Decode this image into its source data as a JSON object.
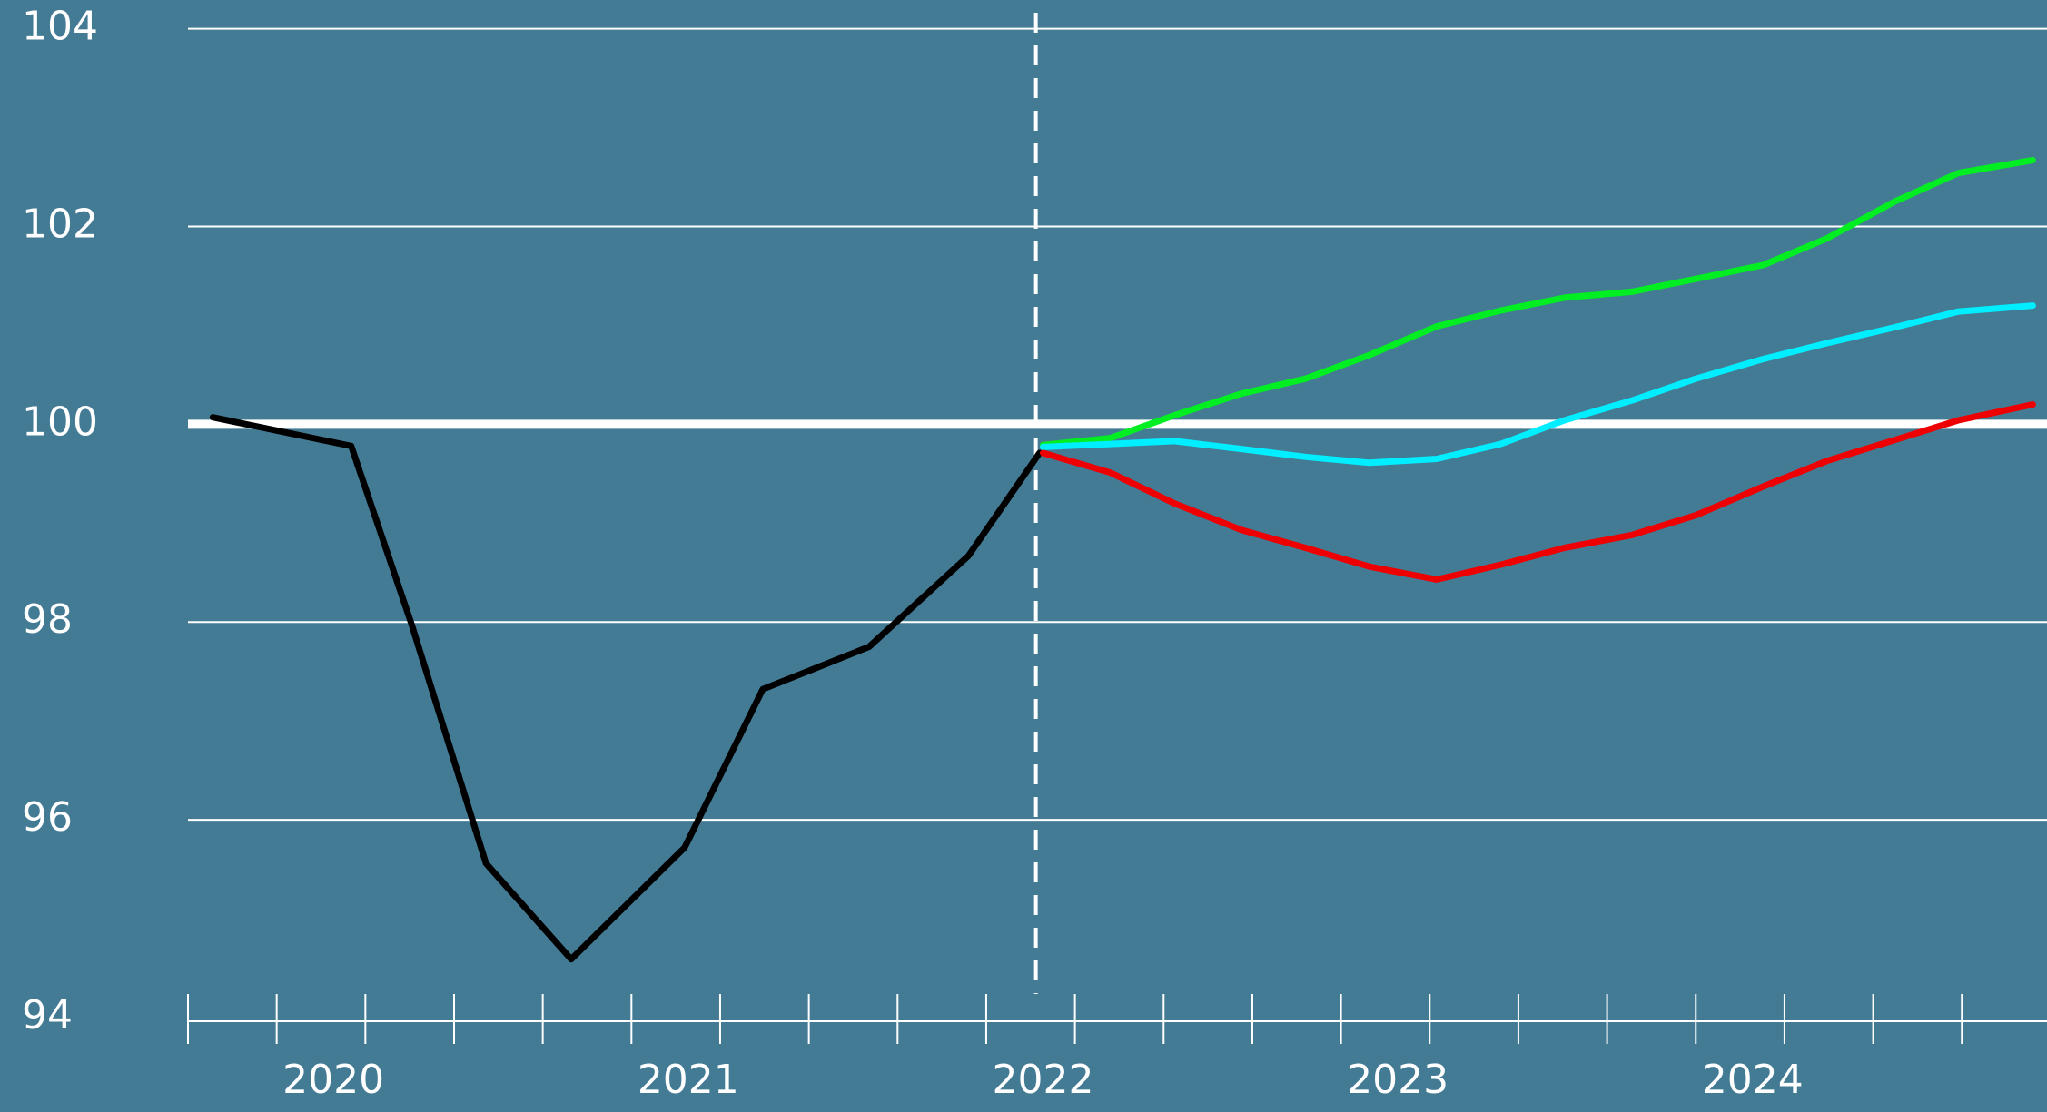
{
  "chart_data": {
    "type": "line",
    "xlim": [
      2019.59,
      2024.83
    ],
    "ylim": [
      94,
      104
    ],
    "yticks": [
      94,
      96,
      98,
      100,
      102,
      104
    ],
    "xticks": [
      2020,
      2021,
      2022,
      2023,
      2024
    ],
    "xminorticks": [
      2019.59,
      2019.84,
      2020.09,
      2020.34,
      2020.59,
      2020.84,
      2021.09,
      2021.34,
      2021.59,
      2021.84,
      2022.09,
      2022.34,
      2022.59,
      2022.84,
      2023.09,
      2023.34,
      2023.59,
      2023.84,
      2024.09,
      2024.34,
      2024.59
    ],
    "grid": true,
    "reference_line": 100,
    "forecast_start": 2021.98,
    "series": [
      {
        "color": "#000000",
        "x": [
          2019.66,
          2020.05,
          2020.22,
          2020.43,
          2020.67,
          2020.99,
          2021.21,
          2021.51,
          2021.79,
          2021.99
        ],
        "values": [
          100.07,
          99.78,
          97.98,
          95.56,
          94.59,
          95.72,
          97.32,
          97.75,
          98.67,
          99.71
        ]
      },
      {
        "color": "#00ee22",
        "x": [
          2022.0,
          2022.19,
          2022.37,
          2022.56,
          2022.74,
          2022.92,
          2023.11,
          2023.29,
          2023.47,
          2023.66,
          2023.84,
          2024.03,
          2024.21,
          2024.4,
          2024.58,
          2024.79
        ],
        "values": [
          99.79,
          99.86,
          100.09,
          100.31,
          100.46,
          100.7,
          100.99,
          101.15,
          101.28,
          101.34,
          101.47,
          101.61,
          101.88,
          102.25,
          102.54,
          102.67
        ]
      },
      {
        "color": "#00eeff",
        "x": [
          2022.0,
          2022.19,
          2022.37,
          2022.56,
          2022.74,
          2022.92,
          2023.11,
          2023.29,
          2023.47,
          2023.66,
          2023.84,
          2024.03,
          2024.21,
          2024.4,
          2024.58,
          2024.79
        ],
        "values": [
          99.77,
          99.8,
          99.83,
          99.75,
          99.67,
          99.61,
          99.65,
          99.8,
          100.04,
          100.24,
          100.46,
          100.66,
          100.82,
          100.98,
          101.14,
          101.2
        ]
      },
      {
        "color": "#ee0000",
        "x": [
          2022.0,
          2022.19,
          2022.37,
          2022.56,
          2022.74,
          2022.92,
          2023.11,
          2023.29,
          2023.47,
          2023.66,
          2023.84,
          2024.03,
          2024.21,
          2024.4,
          2024.58,
          2024.79
        ],
        "values": [
          99.71,
          99.51,
          99.2,
          98.93,
          98.75,
          98.56,
          98.43,
          98.58,
          98.75,
          98.88,
          99.08,
          99.37,
          99.63,
          99.84,
          100.04,
          100.2
        ]
      }
    ]
  }
}
